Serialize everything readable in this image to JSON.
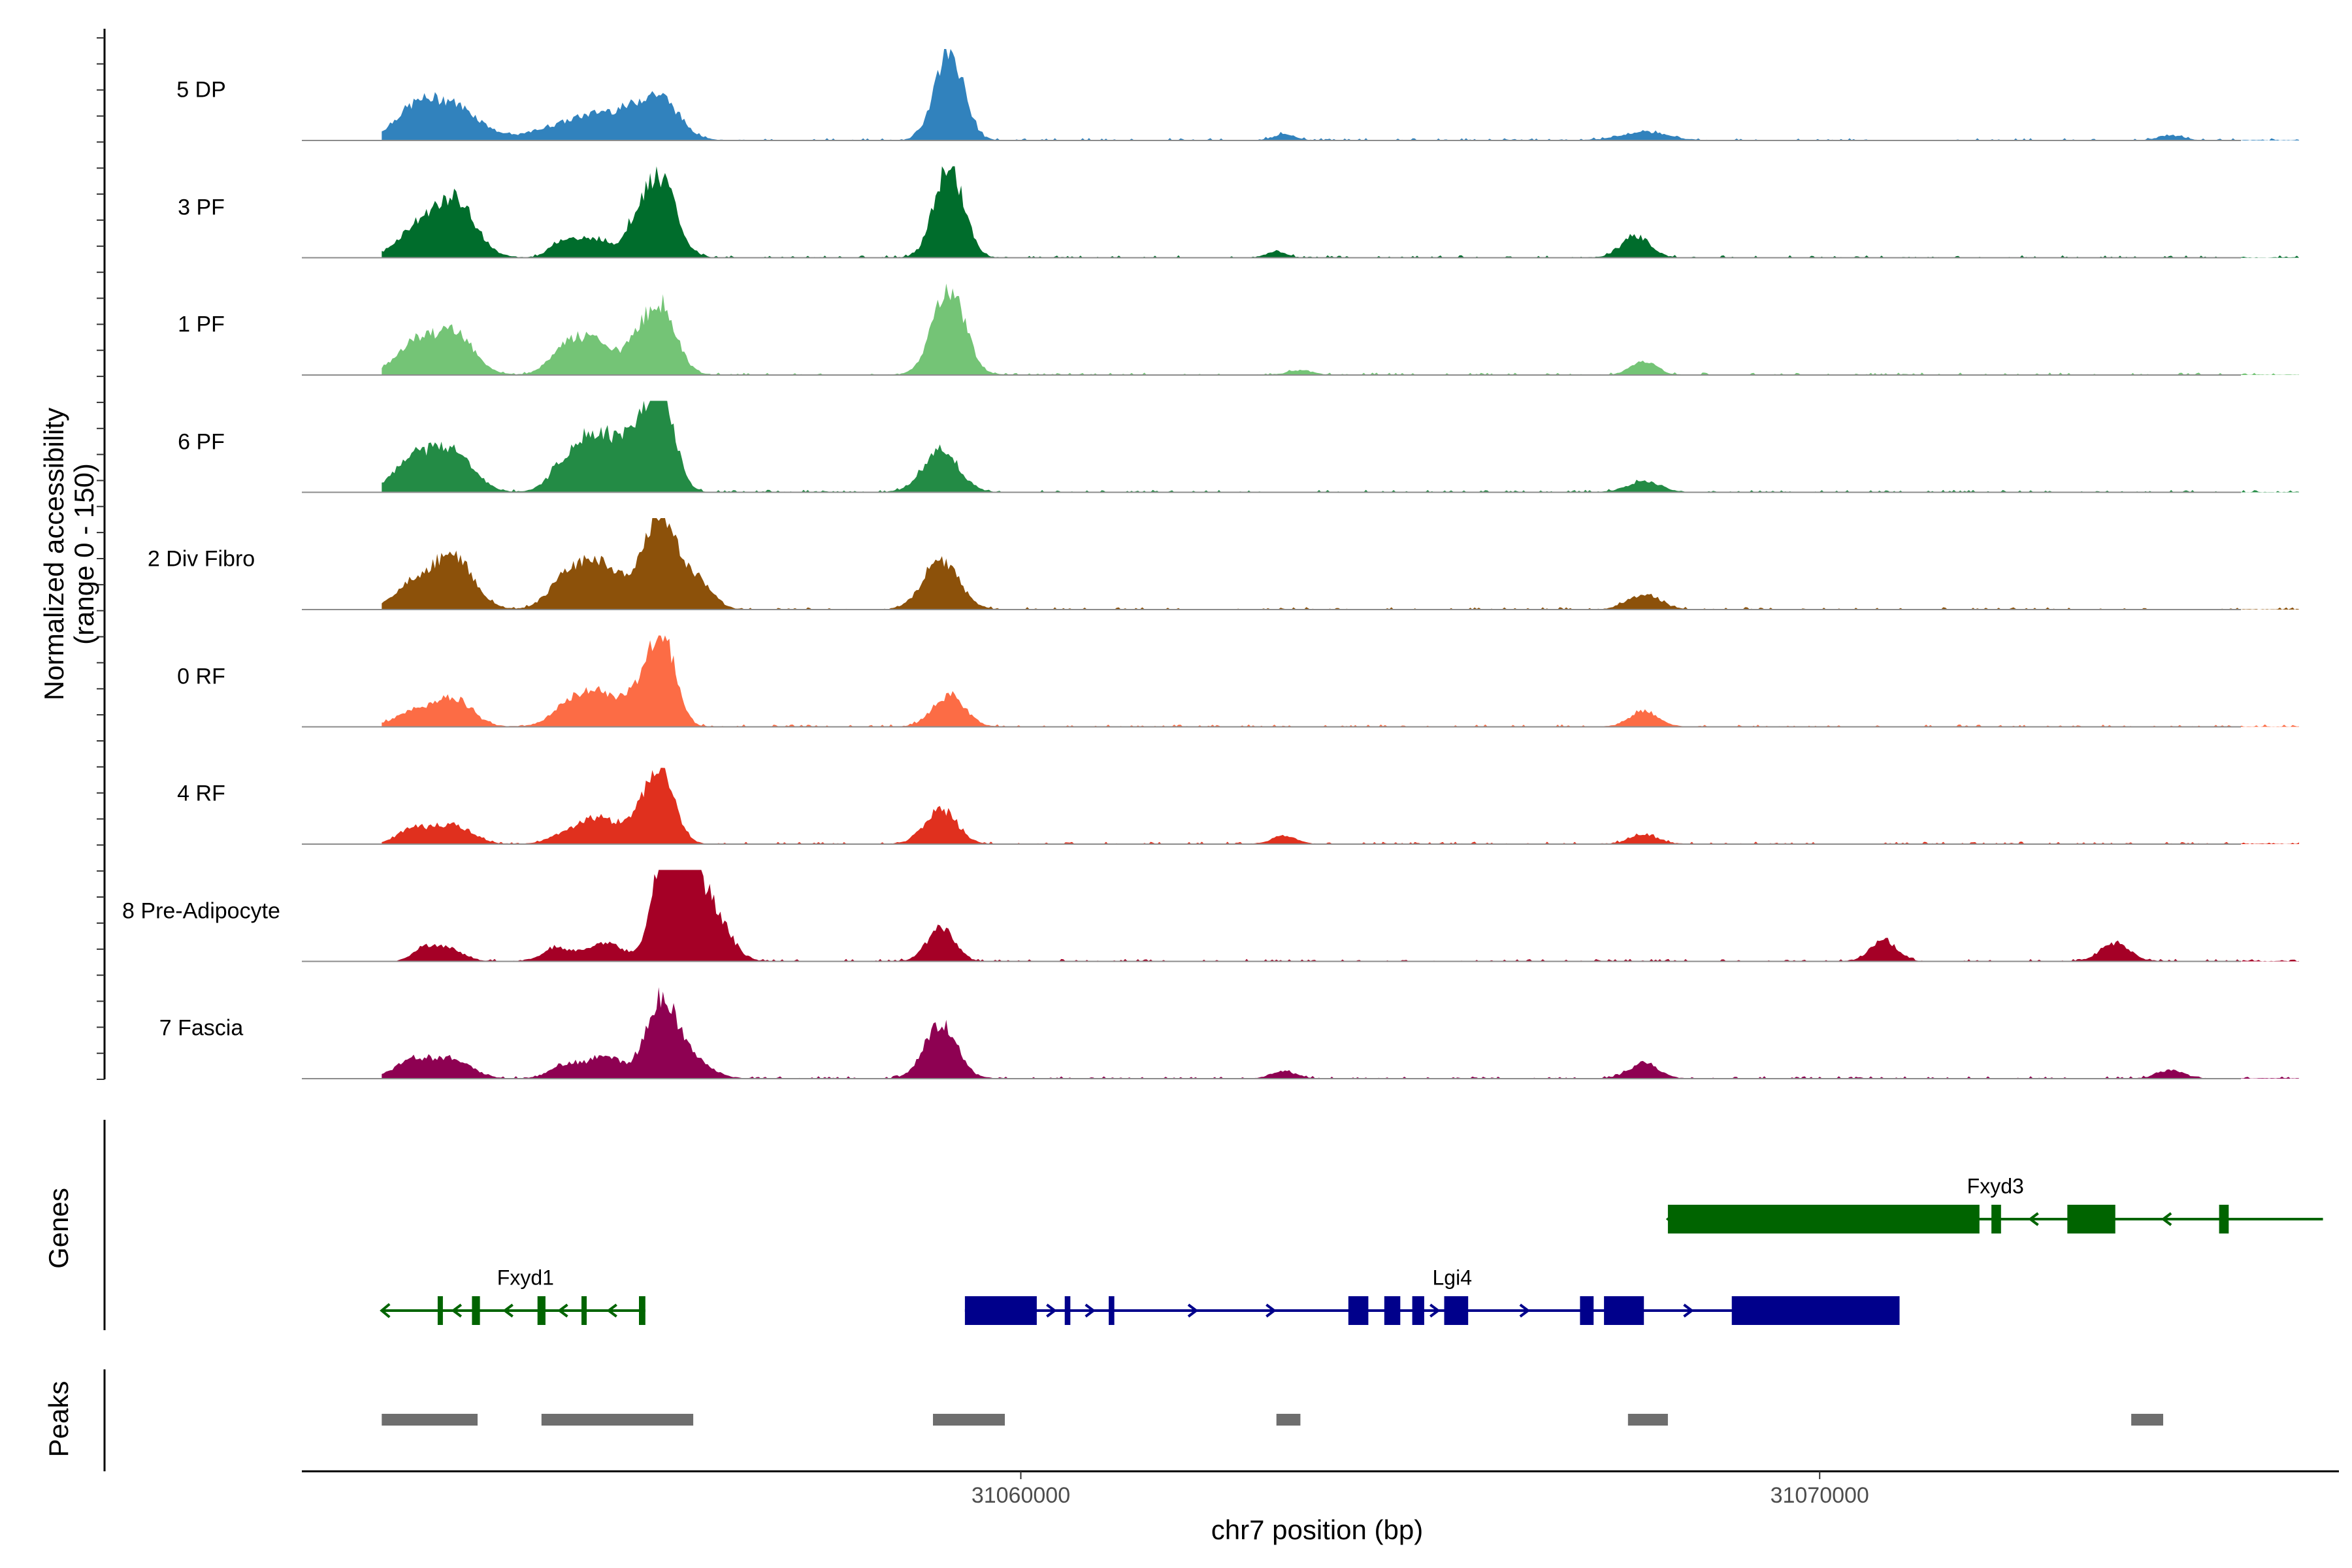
{
  "chart_data": {
    "type": "area",
    "title": "",
    "ylabel": "Normalized accessibility",
    "ylabel_range": "(range 0 - 150)",
    "xlabel": "chr7 position (bp)",
    "xlim": [
      31051000,
      31076500
    ],
    "ylim": [
      0,
      150
    ],
    "x_ticks": [
      31060000,
      31070000
    ],
    "x_tick_labels": [
      "31060000",
      "31070000"
    ],
    "tracks": [
      {
        "name": "5 DP",
        "color": "#3182bd",
        "peaks": [
          [
            31052400,
            45,
            260
          ],
          [
            31052900,
            55,
            320
          ],
          [
            31054200,
            20,
            350
          ],
          [
            31054700,
            28,
            300
          ],
          [
            31055200,
            35,
            320
          ],
          [
            31055500,
            50,
            240
          ],
          [
            31059100,
            150,
            180
          ],
          [
            31063300,
            10,
            130
          ],
          [
            31067800,
            14,
            280
          ],
          [
            31074400,
            8,
            150
          ]
        ]
      },
      {
        "name": "3 PF",
        "color": "#006d2c",
        "peaks": [
          [
            31052400,
            40,
            230
          ],
          [
            31052900,
            95,
            260
          ],
          [
            31054300,
            30,
            170
          ],
          [
            31054700,
            28,
            170
          ],
          [
            31055200,
            50,
            160
          ],
          [
            31055500,
            125,
            190
          ],
          [
            31059100,
            150,
            180
          ],
          [
            31063200,
            10,
            120
          ],
          [
            31067700,
            35,
            180
          ]
        ]
      },
      {
        "name": "1 PF",
        "color": "#74c476",
        "peaks": [
          [
            31052400,
            50,
            230
          ],
          [
            31052900,
            70,
            240
          ],
          [
            31054300,
            45,
            200
          ],
          [
            31054700,
            50,
            220
          ],
          [
            31055200,
            40,
            160
          ],
          [
            31055500,
            110,
            190
          ],
          [
            31059100,
            140,
            200
          ],
          [
            31063500,
            8,
            150
          ],
          [
            31067800,
            22,
            160
          ]
        ]
      },
      {
        "name": "6 PF",
        "color": "#238b45",
        "peaks": [
          [
            31052400,
            55,
            240
          ],
          [
            31052900,
            65,
            250
          ],
          [
            31054300,
            40,
            200
          ],
          [
            31054700,
            90,
            240
          ],
          [
            31055200,
            75,
            200
          ],
          [
            31055500,
            150,
            170
          ],
          [
            31059000,
            70,
            220
          ],
          [
            31067800,
            18,
            200
          ]
        ]
      },
      {
        "name": "2 Div Fibro",
        "color": "#8c510a",
        "peaks": [
          [
            31052400,
            40,
            240
          ],
          [
            31052900,
            85,
            250
          ],
          [
            31054300,
            45,
            220
          ],
          [
            31054700,
            70,
            240
          ],
          [
            31055200,
            40,
            180
          ],
          [
            31055500,
            150,
            170
          ],
          [
            31055900,
            55,
            200
          ],
          [
            31059000,
            80,
            220
          ],
          [
            31067800,
            25,
            200
          ]
        ]
      },
      {
        "name": "0 RF",
        "color": "#fc6c45",
        "peaks": [
          [
            31052400,
            25,
            230
          ],
          [
            31052900,
            45,
            230
          ],
          [
            31054300,
            30,
            200
          ],
          [
            31054700,
            55,
            220
          ],
          [
            31055200,
            45,
            190
          ],
          [
            31055500,
            145,
            170
          ],
          [
            31059100,
            50,
            200
          ],
          [
            31067800,
            25,
            180
          ]
        ]
      },
      {
        "name": "4 RF",
        "color": "#e0301e",
        "peaks": [
          [
            31052400,
            25,
            200
          ],
          [
            31052900,
            30,
            230
          ],
          [
            31054300,
            15,
            200
          ],
          [
            31054700,
            40,
            220
          ],
          [
            31055200,
            35,
            190
          ],
          [
            31055500,
            115,
            170
          ],
          [
            31059000,
            55,
            200
          ],
          [
            31063300,
            14,
            150
          ],
          [
            31067800,
            15,
            180
          ]
        ]
      },
      {
        "name": "8 Pre-Adipocyte",
        "color": "#a50026",
        "peaks": [
          [
            31052500,
            18,
            120
          ],
          [
            31052800,
            22,
            200
          ],
          [
            31054200,
            22,
            180
          ],
          [
            31054800,
            30,
            220
          ],
          [
            31055500,
            150,
            140
          ],
          [
            31055800,
            130,
            160
          ],
          [
            31056100,
            90,
            220
          ],
          [
            31059000,
            55,
            170
          ],
          [
            31070800,
            35,
            160
          ],
          [
            31073700,
            30,
            180
          ]
        ]
      },
      {
        "name": "7 Fascia",
        "color": "#8e0152",
        "peaks": [
          [
            31052400,
            30,
            230
          ],
          [
            31052900,
            30,
            230
          ],
          [
            31054300,
            20,
            200
          ],
          [
            31054800,
            35,
            220
          ],
          [
            31055500,
            130,
            190
          ],
          [
            31055900,
            30,
            220
          ],
          [
            31059000,
            90,
            200
          ],
          [
            31063300,
            12,
            150
          ],
          [
            31067800,
            25,
            180
          ],
          [
            31074400,
            14,
            160
          ]
        ]
      }
    ],
    "genes": [
      {
        "name": "Fxyd1",
        "strand": "-",
        "color": "#006400",
        "row": 1,
        "start": 31052000,
        "end": 31055300,
        "exons": [
          [
            31052700,
            31052760
          ],
          [
            31053130,
            31053230
          ],
          [
            31053950,
            31054050
          ],
          [
            31054500,
            31054560
          ],
          [
            31055220,
            31055300
          ]
        ]
      },
      {
        "name": "Lgi4",
        "strand": "+",
        "color": "#00008b",
        "row": 1,
        "start": 31059300,
        "end": 31071000,
        "exons": [
          [
            31059300,
            31060200
          ],
          [
            31060550,
            31060620
          ],
          [
            31061100,
            31061170
          ],
          [
            31064100,
            31064350
          ],
          [
            31064550,
            31064750
          ],
          [
            31064900,
            31065050
          ],
          [
            31065300,
            31065600
          ],
          [
            31067000,
            31067170
          ],
          [
            31067300,
            31067800
          ],
          [
            31068900,
            31071000
          ]
        ]
      },
      {
        "name": "Fxyd3",
        "strand": "-",
        "color": "#006400",
        "row": 0,
        "start": 31068100,
        "end": 31076300,
        "exons": [
          [
            31068100,
            31072000
          ],
          [
            31072150,
            31072270
          ],
          [
            31073100,
            31073700
          ],
          [
            31075000,
            31075120
          ]
        ]
      }
    ],
    "gene_track_label": "Genes",
    "peaks_track_label": "Peaks",
    "peak_regions": [
      [
        31052000,
        31053200
      ],
      [
        31054000,
        31055900
      ],
      [
        31058900,
        31059800
      ],
      [
        31063200,
        31063500
      ],
      [
        31067600,
        31068100
      ],
      [
        31073900,
        31074300
      ]
    ]
  }
}
